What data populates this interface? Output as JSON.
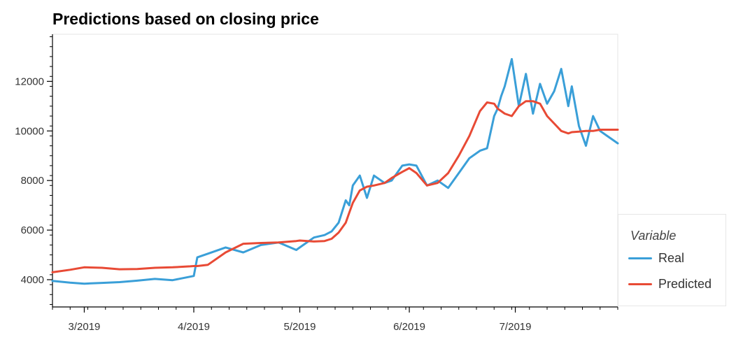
{
  "chart_data": {
    "type": "line",
    "title": "Predictions based on closing price",
    "xlabel": "",
    "ylabel": "",
    "x_tick_labels": [
      "3/2019",
      "4/2019",
      "5/2019",
      "6/2019",
      "7/2019"
    ],
    "x_range": [
      "2019-02-20",
      "2019-07-30"
    ],
    "y_ticks": [
      4000,
      6000,
      8000,
      10000,
      12000
    ],
    "ylim": [
      2900,
      13900
    ],
    "grid": false,
    "legend": {
      "title": "Variable",
      "placement": "right"
    },
    "x": [
      "2019-02-20",
      "2019-02-25",
      "2019-03-01",
      "2019-03-06",
      "2019-03-11",
      "2019-03-16",
      "2019-03-21",
      "2019-03-26",
      "2019-03-31",
      "2019-04-01",
      "2019-04-02",
      "2019-04-05",
      "2019-04-10",
      "2019-04-15",
      "2019-04-20",
      "2019-04-25",
      "2019-04-30",
      "2019-05-01",
      "2019-05-05",
      "2019-05-08",
      "2019-05-10",
      "2019-05-12",
      "2019-05-14",
      "2019-05-15",
      "2019-05-16",
      "2019-05-18",
      "2019-05-20",
      "2019-05-22",
      "2019-05-25",
      "2019-05-27",
      "2019-05-30",
      "2019-06-01",
      "2019-06-03",
      "2019-06-06",
      "2019-06-09",
      "2019-06-12",
      "2019-06-15",
      "2019-06-18",
      "2019-06-21",
      "2019-06-23",
      "2019-06-25",
      "2019-06-26",
      "2019-06-27",
      "2019-06-28",
      "2019-06-30",
      "2019-07-02",
      "2019-07-04",
      "2019-07-06",
      "2019-07-08",
      "2019-07-10",
      "2019-07-12",
      "2019-07-14",
      "2019-07-16",
      "2019-07-17",
      "2019-07-19",
      "2019-07-21",
      "2019-07-23",
      "2019-07-25",
      "2019-07-27",
      "2019-07-30"
    ],
    "series": [
      {
        "name": "Real",
        "color": "#3a9fd8",
        "values": [
          3950,
          3880,
          3840,
          3870,
          3900,
          3960,
          4030,
          3980,
          4120,
          4150,
          4900,
          5050,
          5300,
          5100,
          5400,
          5500,
          5200,
          5300,
          5700,
          5800,
          5950,
          6300,
          7200,
          7000,
          7800,
          8200,
          7300,
          8200,
          7900,
          8000,
          8600,
          8650,
          8600,
          7800,
          8000,
          7700,
          8300,
          8900,
          9200,
          9300,
          10600,
          10900,
          11400,
          11800,
          12900,
          11000,
          12300,
          10700,
          11900,
          11100,
          11600,
          12500,
          11000,
          11800,
          10200,
          9400,
          10600,
          10000,
          9800,
          9500
        ]
      },
      {
        "name": "Predicted",
        "color": "#e84a35",
        "values": [
          4300,
          4400,
          4500,
          4480,
          4420,
          4430,
          4480,
          4500,
          4540,
          4550,
          4550,
          4600,
          5100,
          5450,
          5480,
          5500,
          5560,
          5580,
          5540,
          5560,
          5650,
          5900,
          6300,
          6700,
          7100,
          7600,
          7750,
          7800,
          7900,
          8100,
          8350,
          8500,
          8300,
          7800,
          7900,
          8300,
          9000,
          9800,
          10800,
          11150,
          11100,
          10900,
          10800,
          10700,
          10600,
          11000,
          11200,
          11200,
          11100,
          10600,
          10300,
          10000,
          9900,
          9950,
          9970,
          10000,
          10000,
          10050,
          10050,
          10050
        ]
      }
    ]
  }
}
